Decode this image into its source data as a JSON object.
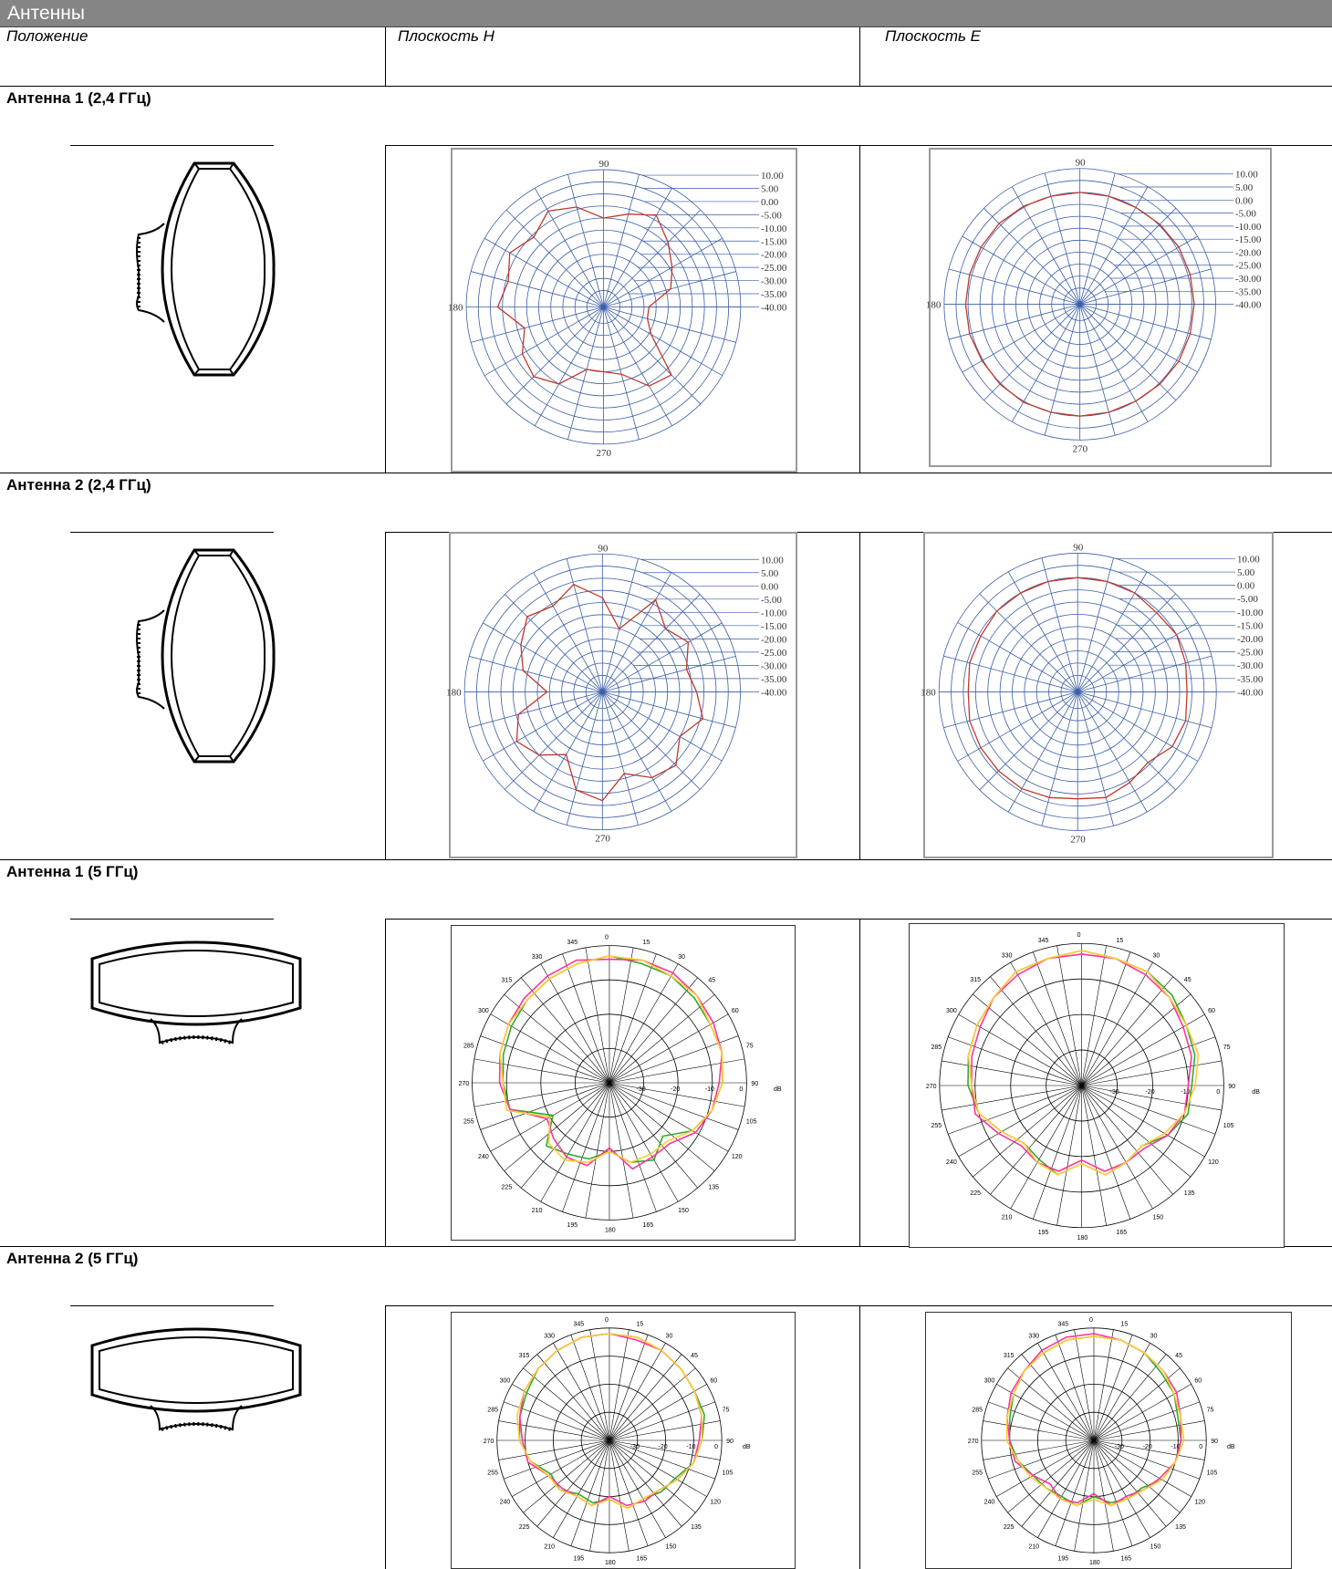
{
  "header": {
    "title": "Антенны"
  },
  "columns": [
    "Положение",
    "Плоскость H",
    "Плоскость E"
  ],
  "sections": [
    {
      "title": "Антенна 1 (2,4 ГГц)"
    },
    {
      "title": "Антенна 2 (2,4 ГГц)"
    },
    {
      "title": "Антенна 1 (5 ГГц)"
    },
    {
      "title": "Антенна 2 (5 ГГц)"
    }
  ],
  "chart_data": [
    {
      "type": "polar",
      "name": "Антенна 1 (2,4 ГГц) — Плоскость H",
      "angle_labels": [
        "90",
        "180",
        "270"
      ],
      "radial_labels": [
        "10.00",
        "5.00",
        "0.00",
        "-5.00",
        "-10.00",
        "-15.00",
        "-20.00",
        "-25.00",
        "-30.00",
        "-35.00",
        "-40.00"
      ],
      "rlim": [
        -40,
        10
      ],
      "angle_start": 0,
      "series": [
        {
          "color": "#c0392b",
          "values": [
            -28,
            -18,
            -14,
            -9,
            -3,
            -7,
            -10,
            -4,
            -1,
            -6,
            -2,
            -6,
            -3,
            -13,
            -8,
            -6,
            -10,
            -20,
            -20,
            -18,
            -9,
            -7,
            -24,
            -28
          ]
        }
      ]
    },
    {
      "type": "polar",
      "name": "Антенна 1 (2,4 ГГц) — Плоскость E",
      "angle_labels": [
        "90",
        "180",
        "270"
      ],
      "radial_labels": [
        "10.00",
        "5.00",
        "0.00",
        "-5.00",
        "-10.00",
        "-15.00",
        "-20.00",
        "-25.00",
        "-30.00",
        "-35.00",
        "-40.00"
      ],
      "rlim": [
        -40,
        10
      ],
      "angle_start": 0,
      "series": [
        {
          "color": "#c0392b",
          "values": [
            1,
            1,
            1,
            0.5,
            0,
            0,
            0,
            0,
            0.5,
            1,
            1,
            1,
            1,
            1,
            0.5,
            0.5,
            0.5,
            0,
            0,
            0,
            0,
            0.5,
            1,
            1
          ]
        }
      ]
    },
    {
      "type": "polar",
      "name": "Антенна 2 (2,4 ГГц) — Плоскость H",
      "angle_labels": [
        "90",
        "180",
        "270"
      ],
      "radial_labels": [
        "10.00",
        "5.00",
        "0.00",
        "-5.00",
        "-10.00",
        "-15.00",
        "-20.00",
        "-25.00",
        "-30.00",
        "-35.00",
        "-40.00"
      ],
      "rlim": [
        -40,
        10
      ],
      "angle_start": 0,
      "series": [
        {
          "color": "#c0392b",
          "values": [
            -8,
            -11,
            -6,
            -10,
            -3,
            -20,
            -8,
            -1,
            -6,
            -3,
            -8,
            -13,
            -24,
            -11,
            -6,
            -10,
            -17,
            -5,
            -2,
            -12,
            -6,
            -4,
            -10,
            -4
          ]
        }
      ]
    },
    {
      "type": "polar",
      "name": "Антенна 2 (2,4 ГГц) — Плоскость E",
      "angle_labels": [
        "90",
        "180",
        "270"
      ],
      "radial_labels": [
        "10.00",
        "5.00",
        "0.00",
        "-5.00",
        "-10.00",
        "-15.00",
        "-20.00",
        "-25.00",
        "-30.00",
        "-35.00",
        "-40.00"
      ],
      "rlim": [
        -40,
        10
      ],
      "angle_start": 0,
      "series": [
        {
          "color": "#c0392b",
          "values": [
            -2,
            -1,
            0,
            -1,
            0,
            0,
            0,
            0,
            0,
            0,
            -1,
            -1,
            -2,
            -1,
            -1,
            -1,
            -1,
            -2,
            -3,
            -2,
            -4,
            -6,
            -2,
            -1
          ]
        }
      ]
    },
    {
      "type": "polar",
      "name": "Антенна 1 (5 ГГц) — Плоскость H",
      "angle_labels": [
        "0",
        "15",
        "30",
        "45",
        "60",
        "75",
        "90",
        "105",
        "120",
        "135",
        "150",
        "165",
        "180",
        "195",
        "210",
        "225",
        "240",
        "255",
        "270",
        "285",
        "300",
        "315",
        "330",
        "345"
      ],
      "radial_labels": [
        "-30",
        "-20",
        "-10",
        "0",
        "dB"
      ],
      "rlim": [
        -40,
        0
      ],
      "angle_start": 0,
      "series": [
        {
          "color": "#33aa33",
          "values": [
            -3,
            -4,
            -4,
            -5,
            -6,
            -6,
            -7,
            -9,
            -12,
            -18,
            -14,
            -16,
            -20,
            -17,
            -16,
            -14,
            -21,
            -10,
            -9,
            -8,
            -7,
            -6,
            -5,
            -4
          ]
        },
        {
          "color": "#ff3399",
          "values": [
            -4,
            -3,
            -3,
            -4,
            -5,
            -6,
            -8,
            -9,
            -11,
            -15,
            -15,
            -14,
            -21,
            -15,
            -15,
            -17,
            -19,
            -10,
            -8,
            -7,
            -6,
            -5,
            -4,
            -3
          ]
        },
        {
          "color": "#ffcc33",
          "values": [
            -3,
            -3,
            -4,
            -4,
            -6,
            -6,
            -7,
            -9,
            -12,
            -16,
            -16,
            -16,
            -20,
            -16,
            -14,
            -15,
            -20,
            -9,
            -9,
            -7,
            -6,
            -6,
            -5,
            -4
          ]
        }
      ]
    },
    {
      "type": "polar",
      "name": "Антенна 1 (5 ГГц) — Плоскость E",
      "angle_labels": [
        "0",
        "15",
        "30",
        "45",
        "60",
        "75",
        "90",
        "105",
        "120",
        "135",
        "150",
        "165",
        "180",
        "195",
        "210",
        "225",
        "240",
        "255",
        "270",
        "285",
        "300",
        "315",
        "330",
        "345"
      ],
      "radial_labels": [
        "-30",
        "-20",
        "-10",
        "0",
        "dB"
      ],
      "rlim": [
        -40,
        0
      ],
      "angle_start": 0,
      "series": [
        {
          "color": "#33aa33",
          "values": [
            -2,
            -3,
            -3,
            -4,
            -6,
            -7,
            -9,
            -9,
            -12,
            -16,
            -15,
            -14,
            -18,
            -14,
            -16,
            -17,
            -14,
            -10,
            -8,
            -7,
            -6,
            -5,
            -3,
            -3
          ]
        },
        {
          "color": "#ff3399",
          "values": [
            -3,
            -3,
            -4,
            -5,
            -7,
            -8,
            -10,
            -10,
            -12,
            -15,
            -15,
            -15,
            -19,
            -15,
            -15,
            -16,
            -13,
            -9,
            -9,
            -8,
            -7,
            -5,
            -4,
            -3
          ]
        },
        {
          "color": "#ffcc33",
          "values": [
            -2,
            -3,
            -3,
            -5,
            -6,
            -6,
            -8,
            -10,
            -13,
            -16,
            -15,
            -14,
            -18,
            -14,
            -15,
            -17,
            -14,
            -10,
            -9,
            -7,
            -6,
            -5,
            -3,
            -3
          ]
        }
      ]
    },
    {
      "type": "polar",
      "name": "Антенна 2 (5 ГГц) — Плоскость H",
      "angle_labels": [
        "0",
        "15",
        "30",
        "45",
        "60",
        "75",
        "90",
        "105",
        "120",
        "135",
        "150",
        "165",
        "180",
        "195",
        "210",
        "225",
        "240",
        "255",
        "270",
        "285",
        "300",
        "315",
        "330",
        "345"
      ],
      "radial_labels": [
        "-30",
        "-20",
        "-10",
        "0",
        "dB"
      ],
      "rlim": [
        -40,
        0
      ],
      "angle_start": 0,
      "series": [
        {
          "color": "#33aa33",
          "values": [
            -2,
            -2,
            -3,
            -4,
            -5,
            -5,
            -7,
            -9,
            -13,
            -14,
            -16,
            -15,
            -19,
            -17,
            -18,
            -15,
            -16,
            -11,
            -8,
            -7,
            -6,
            -4,
            -3,
            -2
          ]
        },
        {
          "color": "#ff3399",
          "values": [
            -2,
            -3,
            -3,
            -4,
            -5,
            -6,
            -8,
            -9,
            -12,
            -15,
            -15,
            -16,
            -20,
            -16,
            -17,
            -16,
            -15,
            -10,
            -9,
            -7,
            -5,
            -4,
            -3,
            -2
          ]
        },
        {
          "color": "#ffcc33",
          "values": [
            -2,
            -2,
            -3,
            -4,
            -5,
            -6,
            -7,
            -9,
            -12,
            -15,
            -16,
            -15,
            -19,
            -16,
            -17,
            -15,
            -15,
            -11,
            -8,
            -6,
            -5,
            -4,
            -3,
            -2
          ]
        }
      ]
    },
    {
      "type": "polar",
      "name": "Антенна 2 (5 ГГц) — Плоскость E",
      "angle_labels": [
        "0",
        "15",
        "30",
        "45",
        "60",
        "75",
        "90",
        "105",
        "120",
        "135",
        "150",
        "165",
        "180",
        "195",
        "210",
        "225",
        "240",
        "255",
        "270",
        "285",
        "300",
        "315",
        "330",
        "345"
      ],
      "radial_labels": [
        "-30",
        "-20",
        "-10",
        "0",
        "dB"
      ],
      "rlim": [
        -40,
        0
      ],
      "angle_start": 0,
      "series": [
        {
          "color": "#33aa33",
          "values": [
            -3,
            -3,
            -4,
            -6,
            -7,
            -9,
            -9,
            -10,
            -12,
            -16,
            -16,
            -17,
            -20,
            -16,
            -17,
            -16,
            -15,
            -12,
            -10,
            -9,
            -7,
            -5,
            -4,
            -3
          ]
        },
        {
          "color": "#ff3399",
          "values": [
            -2,
            -3,
            -4,
            -5,
            -6,
            -8,
            -9,
            -10,
            -13,
            -15,
            -17,
            -16,
            -21,
            -17,
            -16,
            -18,
            -15,
            -11,
            -10,
            -8,
            -6,
            -5,
            -3,
            -2
          ]
        },
        {
          "color": "#ffcc33",
          "values": [
            -3,
            -3,
            -4,
            -5,
            -7,
            -8,
            -8,
            -10,
            -12,
            -15,
            -16,
            -16,
            -19,
            -16,
            -16,
            -16,
            -14,
            -12,
            -9,
            -8,
            -7,
            -5,
            -4,
            -3
          ]
        }
      ]
    }
  ]
}
